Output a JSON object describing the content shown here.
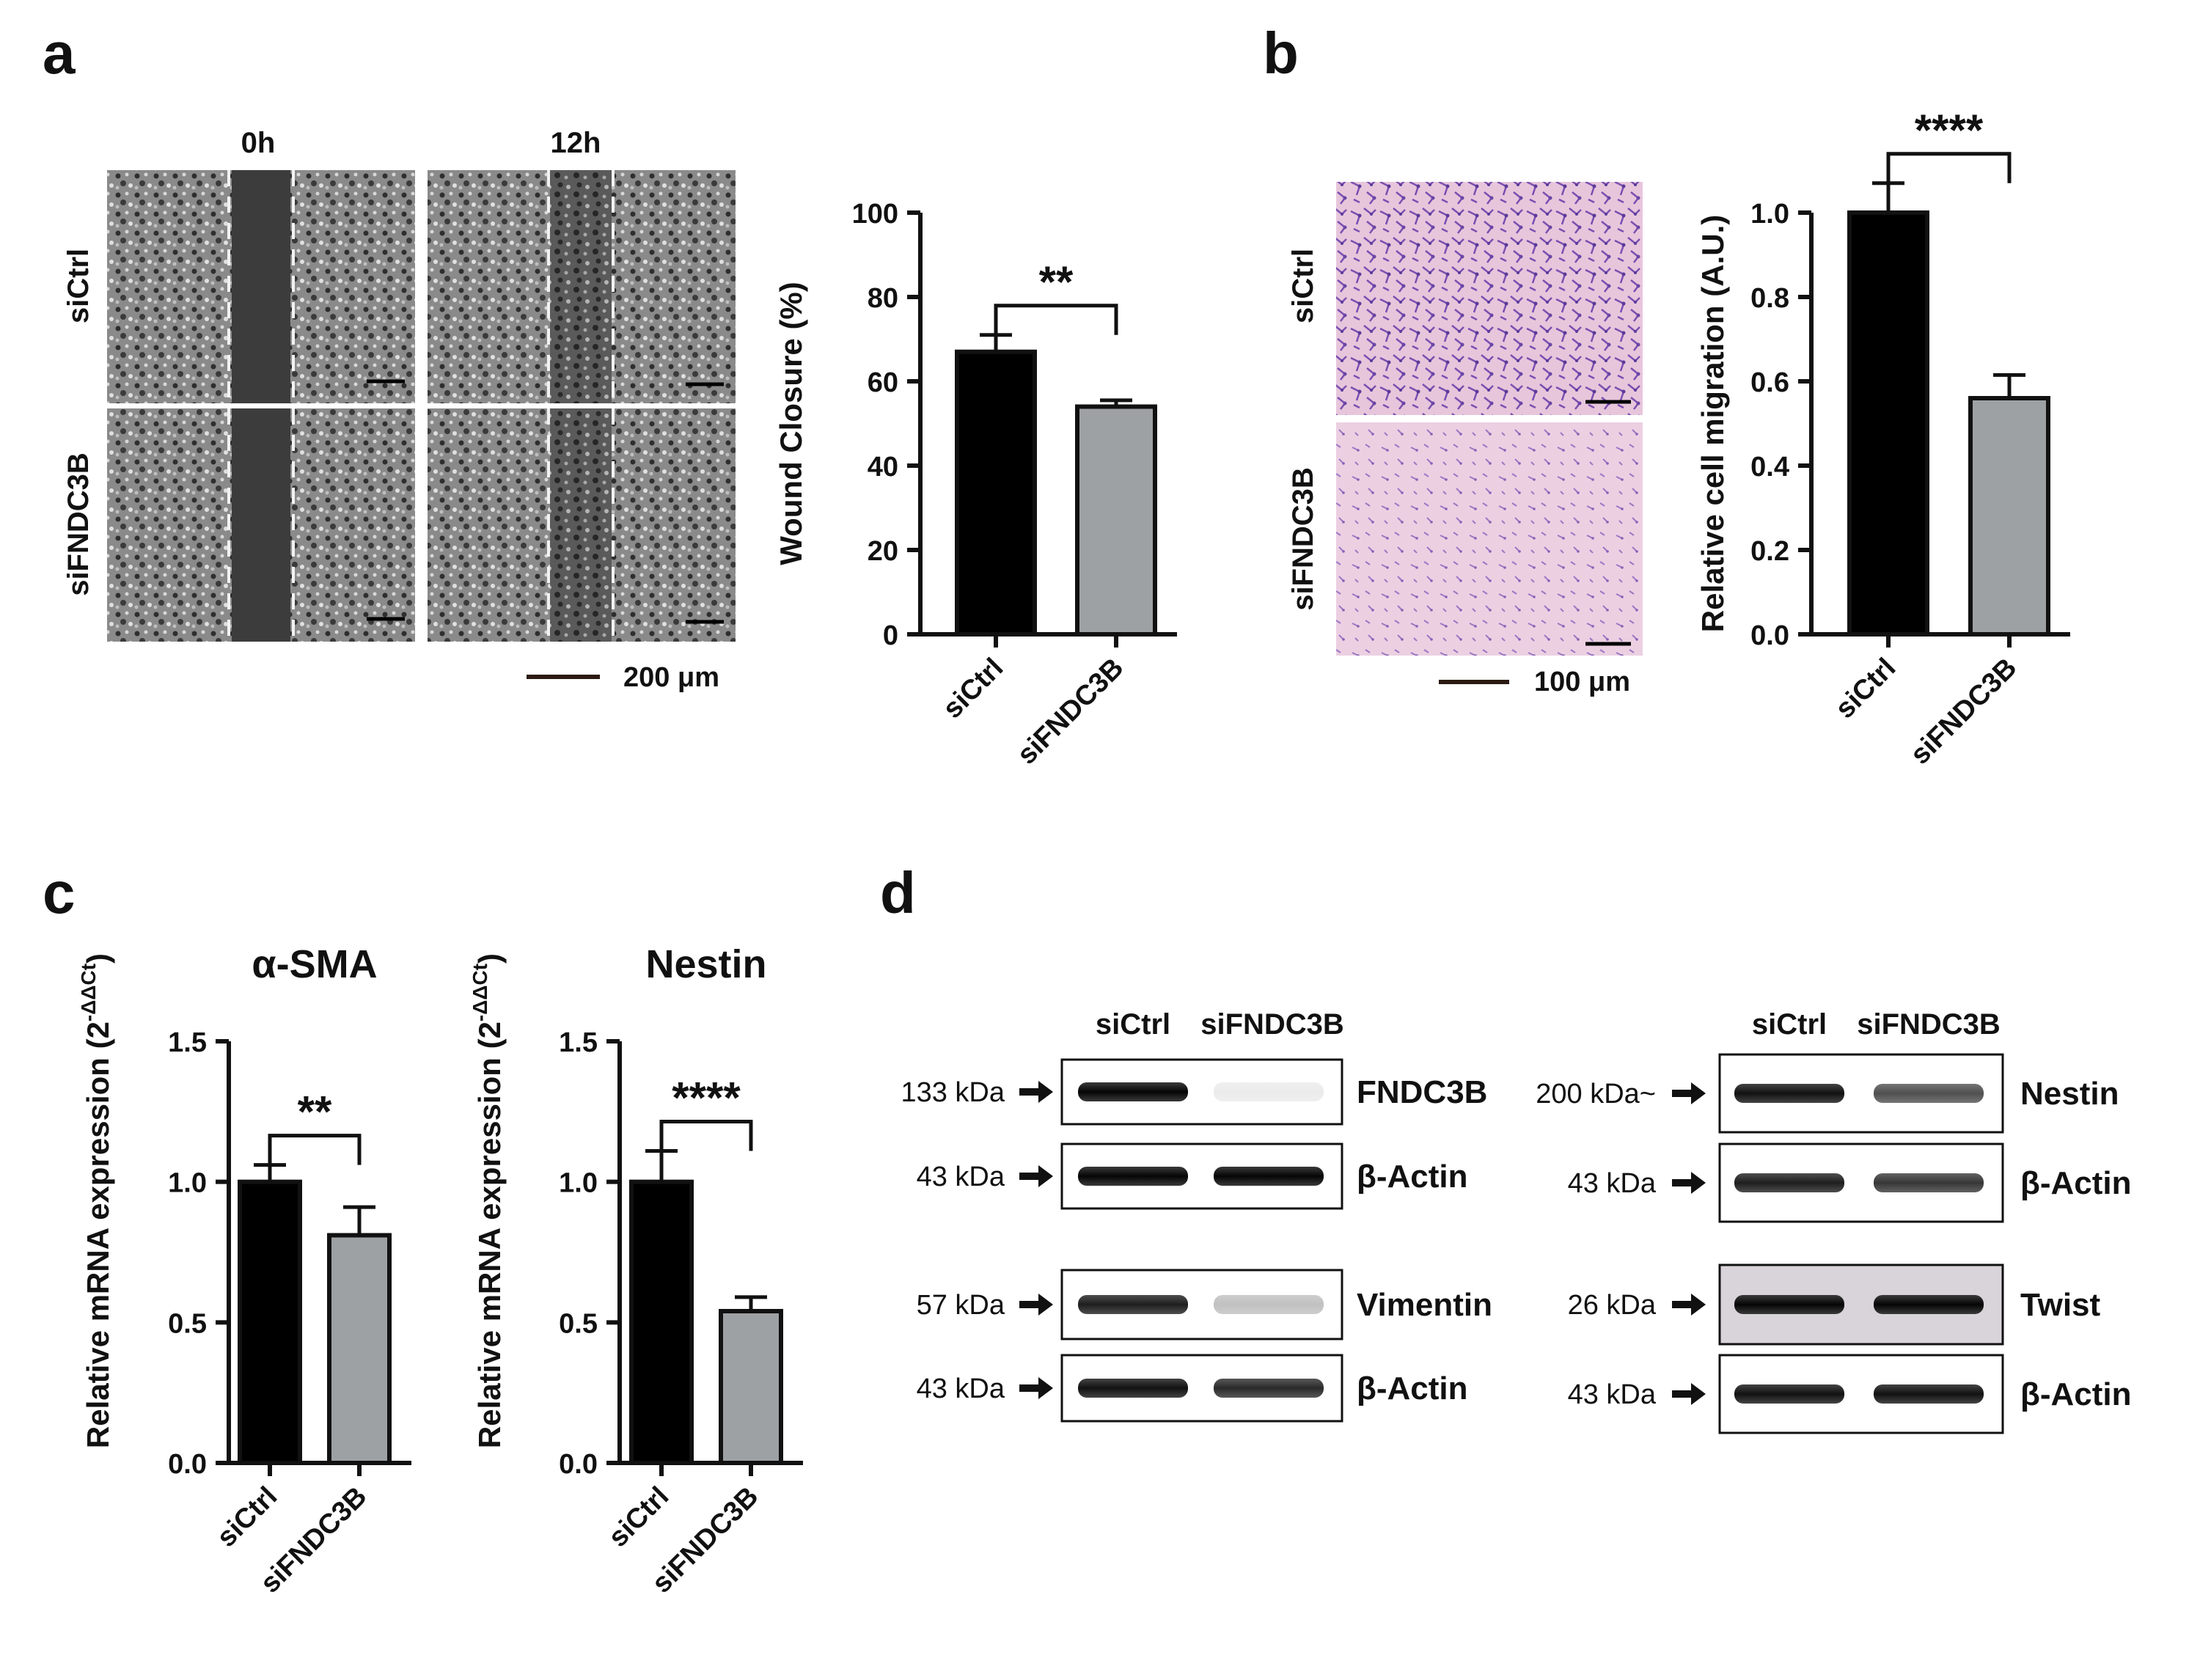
{
  "panels": {
    "a": "a",
    "b": "b",
    "c": "c",
    "d": "d"
  },
  "panel_a": {
    "time_labels": [
      "0h",
      "12h"
    ],
    "row_labels": [
      "siCtrl",
      "siFNDC3B"
    ],
    "scale_bar": "200 μm"
  },
  "panel_b": {
    "row_labels": [
      "siCtrl",
      "siFNDC3B"
    ],
    "scale_bar": "100 μm"
  },
  "chart_data": [
    {
      "id": "wound",
      "type": "bar",
      "categories": [
        "siCtrl",
        "siFNDC3B"
      ],
      "values": [
        67,
        54
      ],
      "errors": [
        4,
        1.5
      ],
      "colors": [
        "#000000",
        "#9ea1a4"
      ],
      "title": "",
      "ylabel": "Wound Closure (%)",
      "ylim": [
        0,
        100
      ],
      "yticks": [
        "0",
        "20",
        "40",
        "60",
        "80",
        "100"
      ],
      "significance": "**"
    },
    {
      "id": "migration",
      "type": "bar",
      "categories": [
        "siCtrl",
        "siFNDC3B"
      ],
      "values": [
        1.0,
        0.56
      ],
      "errors": [
        0.07,
        0.055
      ],
      "colors": [
        "#000000",
        "#9ea1a4"
      ],
      "title": "",
      "ylabel": "Relative cell migration (A.U.)",
      "ylim": [
        0,
        1.0
      ],
      "yticks": [
        "0.0",
        "0.2",
        "0.4",
        "0.6",
        "0.8",
        "1.0"
      ],
      "significance": "****"
    },
    {
      "id": "asma",
      "type": "bar",
      "categories": [
        "siCtrl",
        "siFNDC3B"
      ],
      "values": [
        1.0,
        0.81
      ],
      "errors": [
        0.06,
        0.1
      ],
      "colors": [
        "#000000",
        "#9ea1a4"
      ],
      "title": "α-SMA",
      "ylabel_main": "Relative mRNA expression (2",
      "ylabel_sup": "-ΔΔCt",
      "ylabel_end": ")",
      "ylim": [
        0,
        1.5
      ],
      "yticks": [
        "0.0",
        "0.5",
        "1.0",
        "1.5"
      ],
      "significance": "**"
    },
    {
      "id": "nestin",
      "type": "bar",
      "categories": [
        "siCtrl",
        "siFNDC3B"
      ],
      "values": [
        1.0,
        0.54
      ],
      "errors": [
        0.11,
        0.05
      ],
      "colors": [
        "#000000",
        "#9ea1a4"
      ],
      "title": "Nestin",
      "ylabel_main": "Relative mRNA expression (2",
      "ylabel_sup": "-ΔΔCt",
      "ylabel_end": ")",
      "ylim": [
        0,
        1.5
      ],
      "yticks": [
        "0.0",
        "0.5",
        "1.0",
        "1.5"
      ],
      "significance": "****"
    }
  ],
  "panel_d": {
    "lanes": [
      "siCtrl",
      "siFNDC3B"
    ],
    "left_blots": [
      {
        "kda": "133 kDa",
        "protein": "FNDC3B"
      },
      {
        "kda": "43 kDa",
        "protein": "β-Actin"
      },
      {
        "kda": "57 kDa",
        "protein": "Vimentin"
      },
      {
        "kda": "43 kDa",
        "protein": "β-Actin"
      }
    ],
    "right_blots": [
      {
        "kda": "200 kDa~",
        "protein": "Nestin"
      },
      {
        "kda": "43 kDa",
        "protein": "β-Actin"
      },
      {
        "kda": "26 kDa",
        "protein": "Twist"
      },
      {
        "kda": "43 kDa",
        "protein": "β-Actin"
      }
    ]
  }
}
